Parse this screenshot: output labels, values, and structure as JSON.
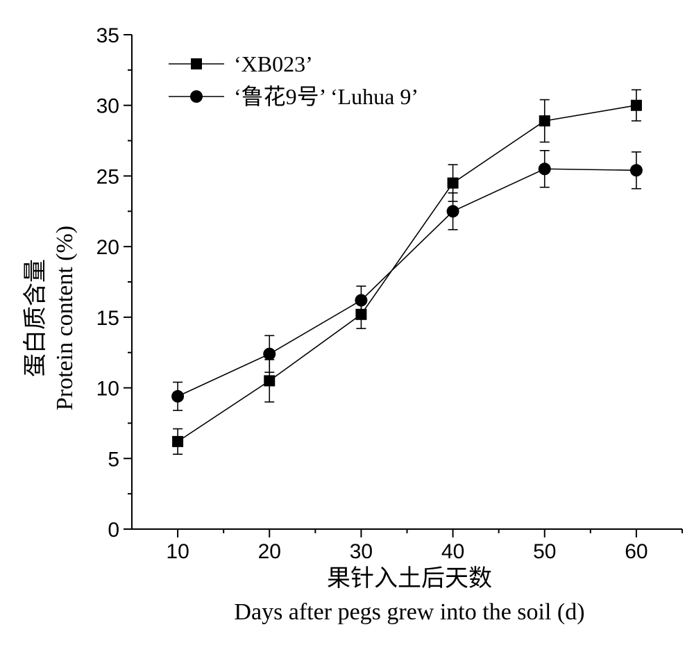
{
  "chart_data": {
    "type": "line",
    "xlabel_cn": "果针入土后天数",
    "xlabel_en": "Days after pegs grew into the soil (d)",
    "ylabel_cn": "蛋白质含量",
    "ylabel_en": "Protein content (%)",
    "xlim": [
      5,
      65
    ],
    "ylim": [
      0,
      35
    ],
    "x": [
      10,
      20,
      30,
      40,
      50,
      60
    ],
    "x_ticks": [
      10,
      20,
      30,
      40,
      50,
      60
    ],
    "x_minor_ticks": [
      15,
      25,
      35,
      45,
      55,
      65
    ],
    "y_ticks": [
      0,
      5,
      10,
      15,
      20,
      25,
      30,
      35
    ],
    "y_minor_ticks": [
      2.5,
      7.5,
      12.5,
      17.5,
      22.5,
      27.5,
      32.5
    ],
    "legend": "top-left",
    "series": [
      {
        "name": "‘XB023’",
        "marker": "square",
        "values": [
          6.2,
          10.5,
          15.2,
          24.5,
          28.9,
          30.0
        ],
        "errors": [
          0.9,
          1.5,
          1.0,
          1.3,
          1.5,
          1.1
        ]
      },
      {
        "name": "‘鲁花9号’ ‘Luhua 9’",
        "marker": "circle",
        "values": [
          9.4,
          12.4,
          16.2,
          22.5,
          25.5,
          25.4
        ],
        "errors": [
          1.0,
          1.3,
          1.0,
          1.3,
          1.3,
          1.3
        ]
      }
    ]
  }
}
